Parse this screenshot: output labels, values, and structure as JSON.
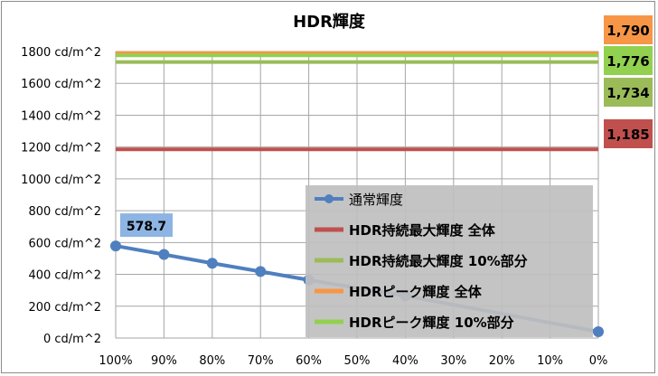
{
  "chart_data": {
    "type": "line",
    "title": "HDR輝度",
    "xlabel": "",
    "ylabel": "",
    "ylim": [
      0,
      1800
    ],
    "yticks": [
      "0 cd/m^2",
      "200 cd/m^2",
      "400 cd/m^2",
      "600 cd/m^2",
      "800 cd/m^2",
      "1000 cd/m^2",
      "1200 cd/m^2",
      "1400 cd/m^2",
      "1600 cd/m^2",
      "1800 cd/m^2"
    ],
    "categories": [
      "100%",
      "90%",
      "80%",
      "70%",
      "60%",
      "50%",
      "40%",
      "30%",
      "20%",
      "10%",
      "0%"
    ],
    "grid": true,
    "legend_position": "bottom-right",
    "series": [
      {
        "name": "通常輝度",
        "type": "line-markers",
        "color": "#4f7fbf",
        "values": [
          578.7,
          525,
          470,
          418,
          365,
          null,
          265,
          null,
          null,
          null,
          40
        ],
        "label": "578.7"
      },
      {
        "name": "HDR持続最大輝度 全体",
        "type": "hline",
        "color": "#c0504d",
        "value": 1185,
        "label": "1,185"
      },
      {
        "name": "HDR持続最大輝度 10%部分",
        "type": "hline",
        "color": "#9bbb59",
        "value": 1734,
        "label": "1,734"
      },
      {
        "name": "HDRピーク輝度 全体",
        "type": "hline",
        "color": "#f79646",
        "value": 1790,
        "label": "1,790"
      },
      {
        "name": "HDRピーク輝度 10%部分",
        "type": "hline",
        "color": "#92d050",
        "value": 1776,
        "label": "1,776"
      }
    ]
  }
}
